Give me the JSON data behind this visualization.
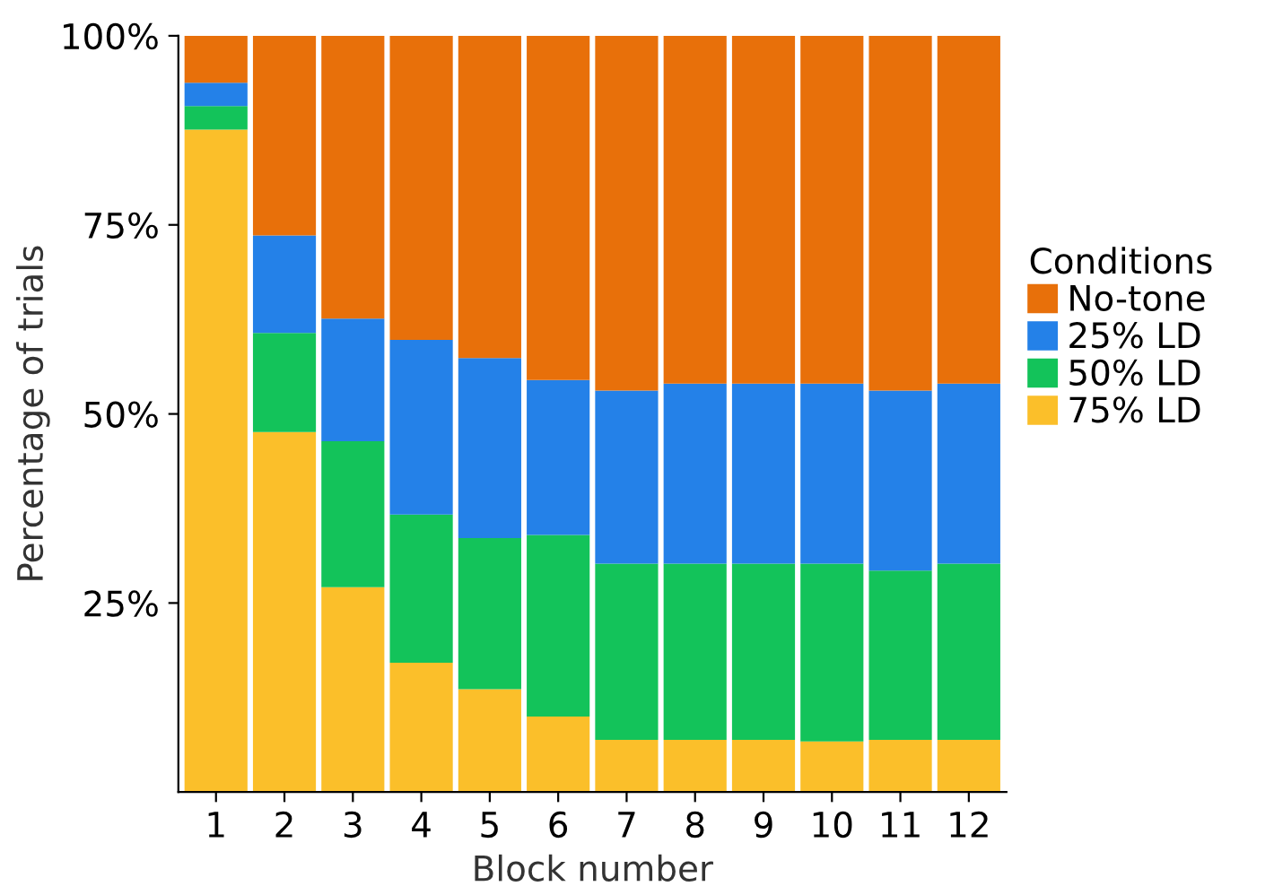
{
  "chart_data": {
    "type": "bar",
    "stacked": true,
    "xlabel": "Block number",
    "ylabel": "Percentage of trials",
    "legend_title": "Conditions",
    "legend": "right",
    "categories": [
      "1",
      "2",
      "3",
      "4",
      "5",
      "6",
      "7",
      "8",
      "9",
      "10",
      "11",
      "12"
    ],
    "series": [
      {
        "name": "75% LD",
        "color": "#fbbf2a",
        "values": [
          87.6,
          47.6,
          27.1,
          17.1,
          13.6,
          10,
          6.9,
          6.9,
          6.9,
          6.7,
          6.9,
          6.9
        ]
      },
      {
        "name": "50% LD",
        "color": "#13c35a",
        "values": [
          3.1,
          13.1,
          19.3,
          19.6,
          20,
          24,
          23.3,
          23.3,
          23.3,
          23.5,
          22.4,
          23.3
        ]
      },
      {
        "name": "25% LD",
        "color": "#2481e8",
        "values": [
          3.1,
          12.9,
          16.2,
          23.1,
          23.8,
          20.5,
          22.9,
          23.8,
          23.8,
          23.8,
          23.8,
          23.8
        ]
      },
      {
        "name": "No-tone",
        "color": "#e8700a",
        "values": [
          6.2,
          26.4,
          37.4,
          40.2,
          42.6,
          45.5,
          46.9,
          46,
          46,
          46,
          46.9,
          46
        ]
      }
    ],
    "ylim": [
      0,
      100
    ],
    "yticks": [
      {
        "value": 25,
        "label": "25%"
      },
      {
        "value": 50,
        "label": "50%"
      },
      {
        "value": 75,
        "label": "75%"
      },
      {
        "value": 100,
        "label": "100%"
      }
    ],
    "grid": false
  }
}
